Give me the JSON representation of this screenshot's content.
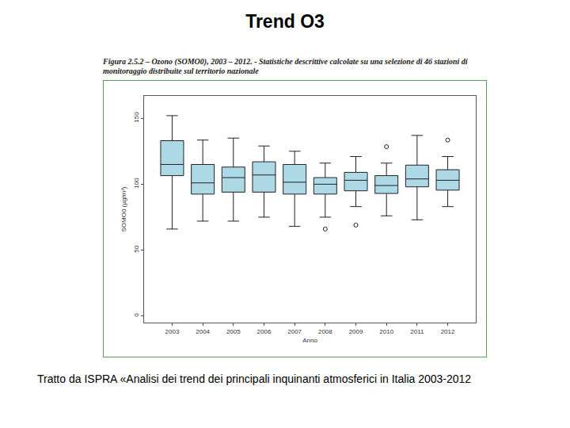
{
  "slide": {
    "title": "Trend O3",
    "source": "Tratto da ISPRA «Analisi dei trend dei principali inquinanti atmosferici in Italia 2003-2012"
  },
  "chart_data": {
    "type": "box",
    "title": "Figura 2.5.2 – Ozono (SOMO0), 2003 – 2012. - Statistiche descrittive calcolate su una selezione di 46 stazioni di monitoraggio distribuite sul territorio nazionale",
    "x_label": "Anno",
    "y_label": "SOMO0 (µg/m³)",
    "categories": [
      "2003",
      "2004",
      "2005",
      "2006",
      "2007",
      "2008",
      "2009",
      "2010",
      "2011",
      "2012"
    ],
    "lowerfence": [
      66,
      72,
      72,
      75,
      68,
      75,
      83,
      76,
      73,
      83
    ],
    "q1": [
      106.5,
      92.5,
      94,
      94,
      92.5,
      92.5,
      95,
      93,
      98,
      95.5
    ],
    "median": [
      115,
      101,
      105,
      107,
      101.5,
      100,
      103,
      99,
      104,
      103
    ],
    "q3": [
      133,
      115,
      113,
      117,
      115,
      105,
      109,
      106.5,
      114.5,
      111
    ],
    "upperfence": [
      152,
      133.5,
      135,
      129,
      125,
      116,
      121,
      116,
      137,
      121
    ],
    "outliers": [
      [],
      [],
      [],
      [],
      [],
      [
        66
      ],
      [
        69
      ],
      [
        128.5
      ],
      [],
      [
        133.5
      ]
    ],
    "color": "#add8e6",
    "ylim": [
      -5,
      167
    ],
    "yticks": [
      0,
      50,
      100,
      150
    ],
    "grid": false
  }
}
